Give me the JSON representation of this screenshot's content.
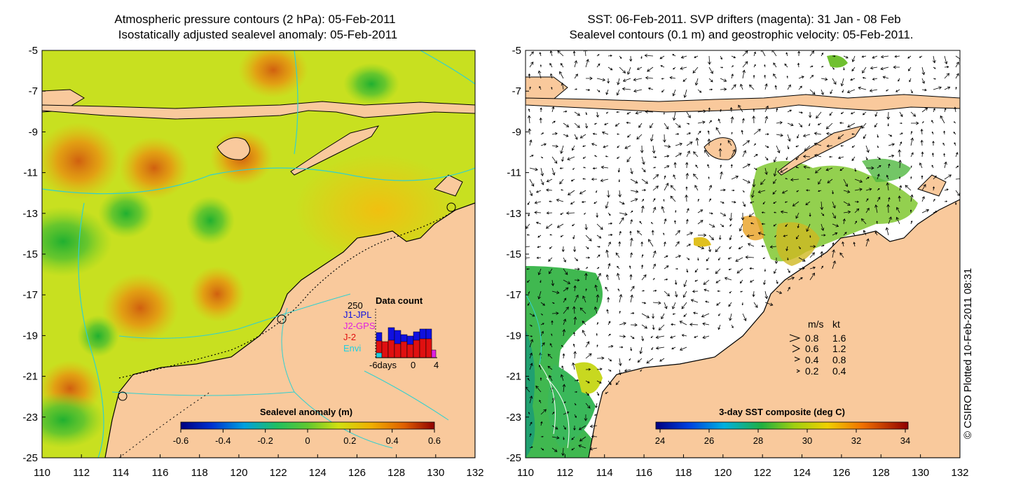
{
  "left_panel": {
    "title_line1": "Atmospheric pressure contours (2 hPa): 05-Feb-2011",
    "title_line2": "Isostatically adjusted sealevel anomaly: 05-Feb-2011",
    "colorbar_title": "Sealevel anomaly (m)",
    "colorbar_ticks": [
      "-0.6",
      "-0.4",
      "-0.2",
      "0",
      "0.2",
      "0.4",
      "0.6"
    ],
    "data_count": {
      "title": "Data count",
      "max_label": "250",
      "missions": [
        {
          "name": "J1-JPL",
          "color": "#1010e0"
        },
        {
          "name": "J2-GPS",
          "color": "#e020e0"
        },
        {
          "name": "J-2",
          "color": "#e01010"
        },
        {
          "name": "Envi",
          "color": "#20d0e0"
        }
      ],
      "xlabel_days": "-6days",
      "xlabel_zero": "0",
      "xlabel_four": "4"
    }
  },
  "right_panel": {
    "title_line1": "SST: 06-Feb-2011. SVP drifters (magenta): 31 Jan - 08 Feb",
    "title_line2": "Sealevel contours (0.1 m) and geostrophic velocity: 05-Feb-2011.",
    "colorbar_title": "3-day SST composite (deg C)",
    "colorbar_ticks": [
      "24",
      "26",
      "28",
      "30",
      "32",
      "34"
    ],
    "velocity_legend": {
      "header_ms": "m/s",
      "header_kt": "kt",
      "rows": [
        {
          "ms": "0.8",
          "kt": "1.6"
        },
        {
          "ms": "0.6",
          "kt": "1.2"
        },
        {
          "ms": "0.4",
          "kt": "0.8"
        },
        {
          "ms": "0.2",
          "kt": "0.4"
        }
      ]
    }
  },
  "axes": {
    "lat_ticks": [
      "-5",
      "-7",
      "-9",
      "-11",
      "-13",
      "-15",
      "-17",
      "-19",
      "-21",
      "-23",
      "-25"
    ],
    "lon_ticks": [
      "110",
      "112",
      "114",
      "116",
      "118",
      "120",
      "122",
      "124",
      "126",
      "128",
      "130",
      "132"
    ]
  },
  "credit": "© CSIRO Plotted 10-Feb-2011 08:31",
  "colors": {
    "land": "#f9c99c",
    "ocean_anomaly_base": "#c8e020",
    "sst_no_data": "#ffffff",
    "contour_cyan": "#30d0d0"
  }
}
